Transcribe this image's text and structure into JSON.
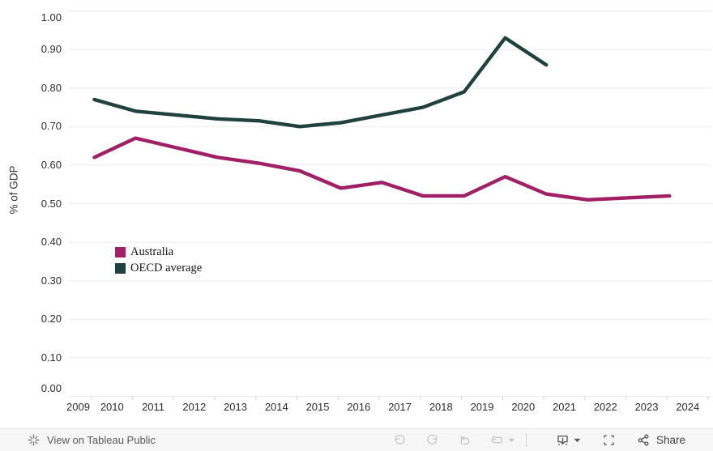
{
  "chart_data": {
    "type": "line",
    "title": "",
    "ylabel": "% of GDP",
    "xlabel": "",
    "ylim": [
      0.0,
      1.0
    ],
    "ytick_labels": [
      "0.00",
      "0.10",
      "0.20",
      "0.30",
      "0.40",
      "0.50",
      "0.60",
      "0.70",
      "0.80",
      "0.90",
      "1.00"
    ],
    "xtick_labels": [
      "2009",
      "2010",
      "2011",
      "2012",
      "2013",
      "2014",
      "2015",
      "2016",
      "2017",
      "2018",
      "2019",
      "2020",
      "2021",
      "2022",
      "2023",
      "2024"
    ],
    "grid": "horizontal",
    "legend_position": "inside-left",
    "series": [
      {
        "name": "Australia",
        "color": "#a12065",
        "years": [
          2010,
          2011,
          2012,
          2013,
          2014,
          2015,
          2016,
          2017,
          2018,
          2019,
          2020,
          2021,
          2022,
          2023,
          2024
        ],
        "values": [
          0.62,
          0.67,
          0.645,
          0.62,
          0.605,
          0.585,
          0.54,
          0.555,
          0.52,
          0.52,
          0.57,
          0.525,
          0.51,
          0.515,
          0.52
        ]
      },
      {
        "name": "OECD average",
        "color": "#21413e",
        "years": [
          2010,
          2011,
          2012,
          2013,
          2014,
          2015,
          2016,
          2017,
          2018,
          2019,
          2020,
          2021
        ],
        "values": [
          0.77,
          0.74,
          0.73,
          0.72,
          0.715,
          0.7,
          0.71,
          0.73,
          0.75,
          0.79,
          0.93,
          0.86
        ]
      }
    ]
  },
  "colors": {
    "grid": "#ebebeb",
    "axis_tick": "#d6d6d6",
    "footer_background": "#f6f6f6",
    "disabled_icon": "#c8c8c8",
    "active_icon": "#5c5c5c"
  },
  "footer": {
    "view_on_label": "View on Tableau Public",
    "share_label": "Share",
    "buttons": [
      {
        "name": "undo",
        "enabled": false
      },
      {
        "name": "redo",
        "enabled": false
      },
      {
        "name": "reset",
        "enabled": false
      },
      {
        "name": "refresh",
        "enabled": false
      },
      {
        "name": "download",
        "enabled": true
      },
      {
        "name": "fullscreen",
        "enabled": true
      },
      {
        "name": "share",
        "enabled": true
      }
    ]
  }
}
